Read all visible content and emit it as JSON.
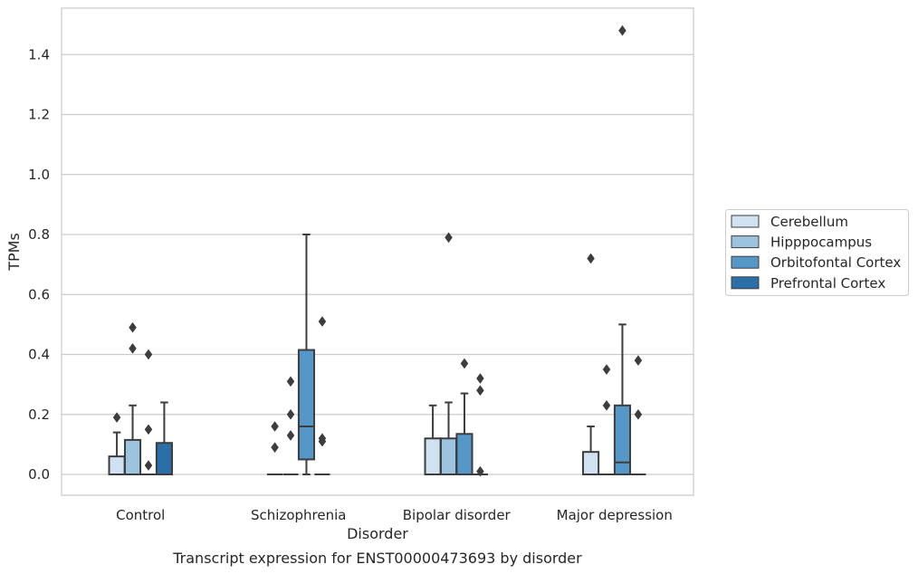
{
  "chart_data": {
    "type": "box",
    "caption": "Transcript expression for ENST00000473693 by disorder",
    "xlabel": "Disorder",
    "ylabel": "TPMs",
    "ylim": [
      -0.07,
      1.56
    ],
    "yticks": [
      "0.0",
      "0.2",
      "0.4",
      "0.6",
      "0.8",
      "1.0",
      "1.2",
      "1.4"
    ],
    "ytick_values": [
      0.0,
      0.2,
      0.4,
      0.6,
      0.8,
      1.0,
      1.2,
      1.4
    ],
    "grid": "horizontal",
    "legend_position": "right",
    "categories": [
      "Control",
      "Schizophrenia",
      "Bipolar disorder",
      "Major depression"
    ],
    "series": [
      {
        "name": "Cerebellum",
        "color": "#d0e1f2",
        "boxes": [
          {
            "q1": 0.0,
            "median": 0.0,
            "q3": 0.06,
            "whisker_low": 0.0,
            "whisker_high": 0.14,
            "outliers": [
              0.19
            ]
          },
          {
            "q1": 0.0,
            "median": 0.0,
            "q3": 0.0,
            "whisker_low": 0.0,
            "whisker_high": 0.0,
            "outliers": [
              0.09,
              0.16
            ]
          },
          {
            "q1": 0.0,
            "median": 0.0,
            "q3": 0.12,
            "whisker_low": 0.0,
            "whisker_high": 0.23,
            "outliers": []
          },
          {
            "q1": 0.0,
            "median": 0.0,
            "q3": 0.075,
            "whisker_low": 0.0,
            "whisker_high": 0.16,
            "outliers": [
              0.72
            ]
          }
        ]
      },
      {
        "name": "Hipppocampus",
        "color": "#9dc4de",
        "boxes": [
          {
            "q1": 0.0,
            "median": 0.0,
            "q3": 0.115,
            "whisker_low": 0.0,
            "whisker_high": 0.23,
            "outliers": [
              0.42,
              0.49
            ]
          },
          {
            "q1": 0.0,
            "median": 0.0,
            "q3": 0.0,
            "whisker_low": 0.0,
            "whisker_high": 0.0,
            "outliers": [
              0.13,
              0.2,
              0.31
            ]
          },
          {
            "q1": 0.0,
            "median": 0.0,
            "q3": 0.12,
            "whisker_low": 0.0,
            "whisker_high": 0.24,
            "outliers": [
              0.79
            ]
          },
          {
            "q1": 0.0,
            "median": 0.0,
            "q3": 0.0,
            "whisker_low": 0.0,
            "whisker_high": 0.0,
            "outliers": [
              0.23,
              0.35
            ]
          }
        ]
      },
      {
        "name": "Orbitofontal Cortex",
        "color": "#5598c8",
        "boxes": [
          {
            "q1": 0.0,
            "median": 0.0,
            "q3": 0.0,
            "whisker_low": 0.0,
            "whisker_high": 0.0,
            "outliers": [
              0.03,
              0.15,
              0.4
            ]
          },
          {
            "q1": 0.05,
            "median": 0.16,
            "q3": 0.415,
            "whisker_low": 0.0,
            "whisker_high": 0.8,
            "outliers": []
          },
          {
            "q1": 0.0,
            "median": 0.0,
            "q3": 0.135,
            "whisker_low": 0.0,
            "whisker_high": 0.27,
            "outliers": [
              0.37
            ]
          },
          {
            "q1": 0.0,
            "median": 0.04,
            "q3": 0.23,
            "whisker_low": 0.0,
            "whisker_high": 0.5,
            "outliers": [
              1.48
            ]
          }
        ]
      },
      {
        "name": "Prefrontal Cortex",
        "color": "#2b6ea8",
        "boxes": [
          {
            "q1": 0.0,
            "median": 0.0,
            "q3": 0.105,
            "whisker_low": 0.0,
            "whisker_high": 0.24,
            "outliers": []
          },
          {
            "q1": 0.0,
            "median": 0.0,
            "q3": 0.0,
            "whisker_low": 0.0,
            "whisker_high": 0.0,
            "outliers": [
              0.11,
              0.12,
              0.51
            ]
          },
          {
            "q1": 0.0,
            "median": 0.0,
            "q3": 0.0,
            "whisker_low": 0.0,
            "whisker_high": 0.0,
            "outliers": [
              0.01,
              0.28,
              0.32
            ]
          },
          {
            "q1": 0.0,
            "median": 0.0,
            "q3": 0.0,
            "whisker_low": 0.0,
            "whisker_high": 0.0,
            "outliers": [
              0.2,
              0.38
            ]
          }
        ]
      }
    ]
  }
}
